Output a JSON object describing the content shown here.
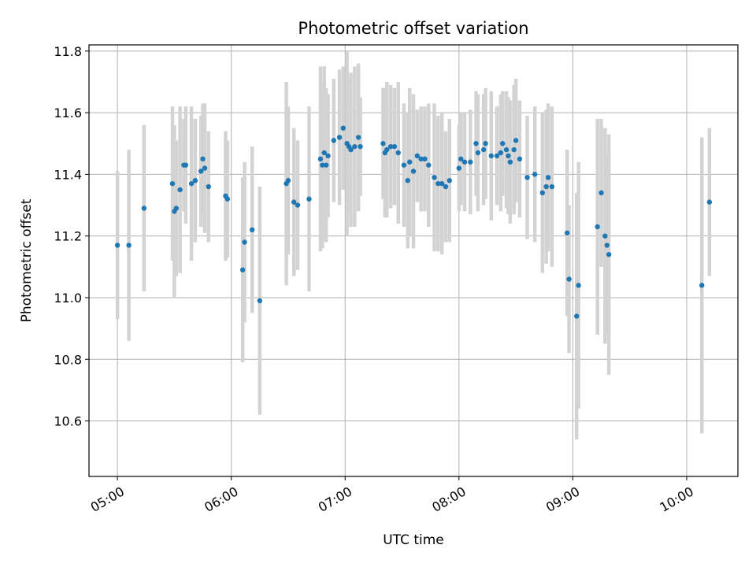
{
  "chart_data": {
    "type": "scatter",
    "title": "Photometric offset variation",
    "xlabel": "UTC time",
    "ylabel": "Photometric offset",
    "grid": true,
    "xlim": [
      "04:45",
      "10:27"
    ],
    "ylim": [
      10.42,
      11.82
    ],
    "x_ticks": [
      "05:00",
      "06:00",
      "07:00",
      "08:00",
      "09:00",
      "10:00"
    ],
    "y_ticks": [
      10.6,
      10.8,
      11.0,
      11.2,
      11.4,
      11.6,
      11.8
    ],
    "colors": {
      "point": "#1f77b4",
      "errorbar": "#d3d3d3",
      "grid": "#b0b0b0"
    },
    "series": [
      {
        "x": [
          "05:00",
          "05:06",
          "05:14",
          "05:29",
          "05:30",
          "05:31",
          "05:33",
          "05:35",
          "05:36",
          "05:39",
          "05:41",
          "05:44",
          "05:45",
          "05:46",
          "05:48",
          "05:57",
          "05:58",
          "06:06",
          "06:07",
          "06:11",
          "06:15",
          "06:29",
          "06:30",
          "06:33",
          "06:35",
          "06:41",
          "06:47",
          "06:48",
          "06:49",
          "06:50",
          "06:51",
          "06:54",
          "06:57",
          "06:59",
          "07:01",
          "07:02",
          "07:03",
          "07:05",
          "07:07",
          "07:08",
          "07:20",
          "07:21",
          "07:22",
          "07:24",
          "07:26",
          "07:28",
          "07:31",
          "07:33",
          "07:34",
          "07:36",
          "07:38",
          "07:40",
          "07:42",
          "07:44",
          "07:47",
          "07:49",
          "07:51",
          "07:53",
          "07:55",
          "08:00",
          "08:01",
          "08:03",
          "08:06",
          "08:09",
          "08:10",
          "08:13",
          "08:14",
          "08:17",
          "08:20",
          "08:22",
          "08:23",
          "08:25",
          "08:26",
          "08:27",
          "08:29",
          "08:30",
          "08:32",
          "08:36",
          "08:40",
          "08:44",
          "08:46",
          "08:47",
          "08:49",
          "08:57",
          "08:58",
          "09:02",
          "09:03",
          "09:13",
          "09:15",
          "09:17",
          "09:18",
          "09:19",
          "10:08",
          "10:12"
        ],
        "y": [
          11.17,
          11.17,
          11.29,
          11.37,
          11.28,
          11.29,
          11.35,
          11.43,
          11.43,
          11.37,
          11.38,
          11.41,
          11.45,
          11.42,
          11.36,
          11.33,
          11.32,
          11.09,
          11.18,
          11.22,
          10.99,
          11.37,
          11.38,
          11.31,
          11.3,
          11.32,
          11.45,
          11.43,
          11.47,
          11.43,
          11.46,
          11.51,
          11.52,
          11.55,
          11.5,
          11.49,
          11.48,
          11.49,
          11.52,
          11.49,
          11.5,
          11.47,
          11.48,
          11.49,
          11.49,
          11.47,
          11.43,
          11.38,
          11.44,
          11.41,
          11.46,
          11.45,
          11.45,
          11.43,
          11.39,
          11.37,
          11.37,
          11.36,
          11.38,
          11.42,
          11.45,
          11.44,
          11.44,
          11.5,
          11.47,
          11.48,
          11.5,
          11.46,
          11.46,
          11.47,
          11.5,
          11.48,
          11.46,
          11.44,
          11.48,
          11.51,
          11.45,
          11.39,
          11.4,
          11.34,
          11.36,
          11.39,
          11.36,
          11.21,
          11.06,
          10.94,
          11.04,
          11.23,
          11.34,
          11.2,
          11.17,
          11.14,
          11.04,
          11.31
        ],
        "yerr": [
          0.24,
          0.31,
          0.27,
          0.25,
          0.28,
          0.22,
          0.27,
          0.15,
          0.19,
          0.25,
          0.2,
          0.18,
          0.18,
          0.21,
          0.18,
          0.21,
          0.19,
          0.3,
          0.26,
          0.27,
          0.37,
          0.33,
          0.24,
          0.24,
          0.21,
          0.3,
          0.3,
          0.27,
          0.28,
          0.25,
          0.2,
          0.2,
          0.22,
          0.2,
          0.3,
          0.22,
          0.25,
          0.26,
          0.24,
          0.16,
          0.18,
          0.21,
          0.22,
          0.2,
          0.19,
          0.23,
          0.2,
          0.22,
          0.24,
          0.25,
          0.15,
          0.17,
          0.17,
          0.2,
          0.24,
          0.22,
          0.23,
          0.18,
          0.2,
          0.14,
          0.15,
          0.16,
          0.17,
          0.17,
          0.19,
          0.18,
          0.18,
          0.21,
          0.16,
          0.19,
          0.17,
          0.19,
          0.19,
          0.2,
          0.21,
          0.2,
          0.19,
          0.2,
          0.22,
          0.26,
          0.25,
          0.24,
          0.26,
          0.27,
          0.24,
          0.4,
          0.4,
          0.35,
          0.24,
          0.35,
          0.29,
          0.39,
          0.48,
          0.24
        ]
      }
    ]
  }
}
